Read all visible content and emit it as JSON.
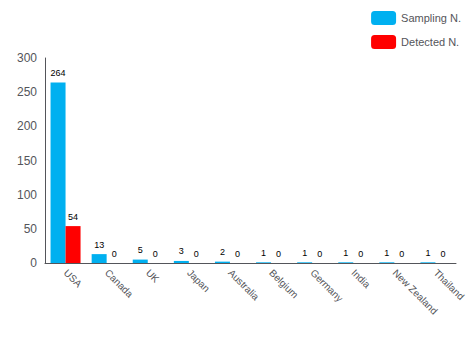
{
  "chart_data": {
    "type": "bar",
    "categories": [
      "USA",
      "Canada",
      "UK",
      "Japan",
      "Australia",
      "Belgium",
      "Germany",
      "India",
      "New Zealand",
      "Thailand"
    ],
    "series": [
      {
        "name": "Sampling N.",
        "color": "#00B0F0",
        "values": [
          264,
          13,
          5,
          3,
          2,
          1,
          1,
          1,
          1,
          1
        ]
      },
      {
        "name": "Detected N.",
        "color": "#FF0000",
        "values": [
          54,
          0,
          0,
          0,
          0,
          0,
          0,
          0,
          0,
          0
        ]
      }
    ],
    "ylim": [
      0,
      300
    ],
    "yticks": [
      0,
      50,
      100,
      150,
      200,
      250,
      300
    ],
    "data_labels": true,
    "legend": "upper right",
    "grid": false
  }
}
